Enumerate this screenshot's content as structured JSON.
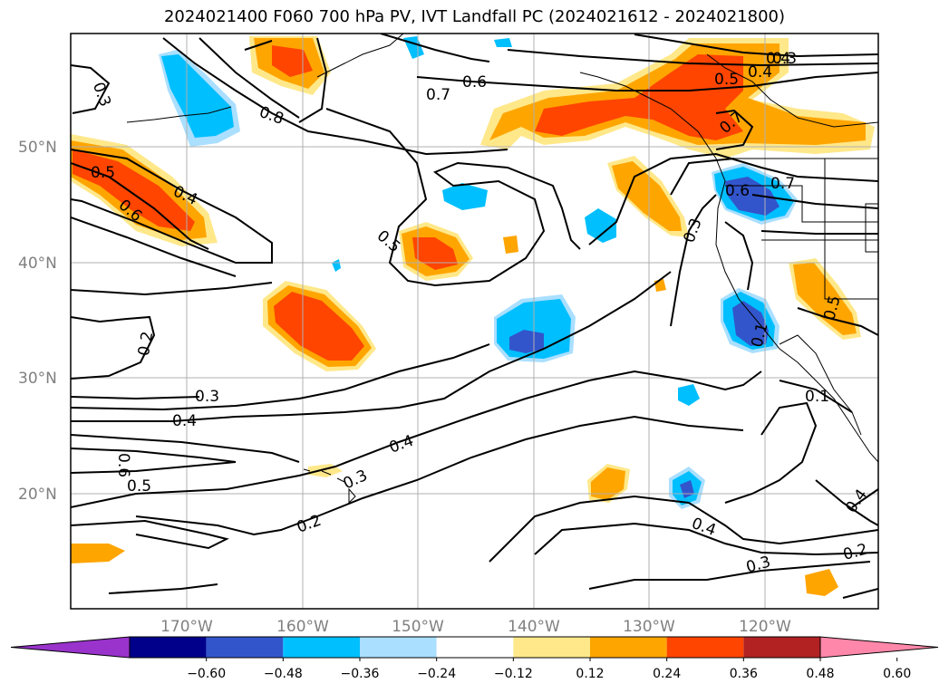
{
  "title": "2024021400 F060 700 hPa PV, IVT Landfall PC (2024021612 - 2024021800)",
  "map": {
    "lon_labels": [
      "170°W",
      "160°W",
      "150°W",
      "140°W",
      "130°W",
      "120°W"
    ],
    "lat_labels": [
      "50°N",
      "40°N",
      "30°N",
      "20°N"
    ]
  },
  "contour_labels": [
    "0.3",
    "0.4",
    "0.3",
    "0.8",
    "0.6",
    "0.7",
    "0.5",
    "0.4",
    "0.7",
    "0.5",
    "0.4",
    "0.6",
    "0.6",
    "0.7",
    "0.5",
    "0.3",
    "0.2",
    "0.3",
    "0.4",
    "0.6",
    "0.5",
    "0.4",
    "0.3",
    "0.2",
    "0.4",
    "0.3",
    "0.2",
    "0.4",
    "0.1",
    "0.5",
    "0.1"
  ],
  "colorbar": {
    "ticks": [
      "−0.60",
      "−0.48",
      "−0.36",
      "−0.24",
      "−0.12",
      "0.12",
      "0.24",
      "0.36",
      "0.48",
      "0.60"
    ],
    "colors": [
      "#9933cc",
      "#00008b",
      "#3355cc",
      "#00bfff",
      "#aadfff",
      "#ffffff",
      "#ffe88a",
      "#ffa500",
      "#ff4500",
      "#b22222",
      "#ff88aa"
    ]
  },
  "fill_colors": {
    "neg_light": "#aadfff",
    "neg_mid": "#00bfff",
    "neg_dark": "#3355cc",
    "pos_light": "#ffe88a",
    "pos_mid": "#ffa500",
    "pos_dark": "#ff4500"
  }
}
